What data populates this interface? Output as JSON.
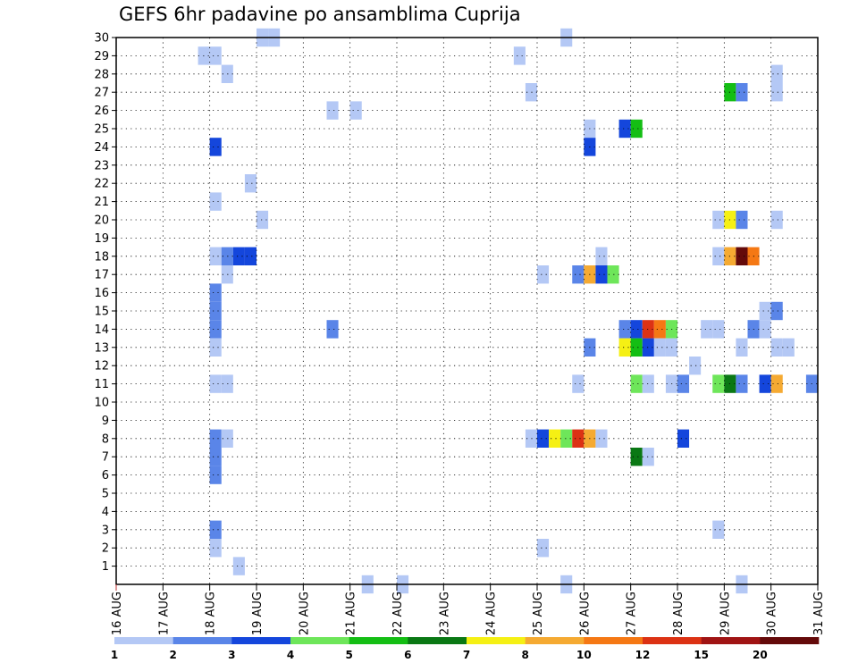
{
  "chart_data": {
    "type": "heatmap",
    "title": "GEFS 6hr padavine po ansamblima Cuprija",
    "xlabel": "",
    "ylabel": "",
    "x_range": [
      0,
      60
    ],
    "y_range": [
      0,
      30
    ],
    "x_ticks": [
      {
        "x": 0,
        "label": "16 AUG"
      },
      {
        "x": 4,
        "label": "17 AUG"
      },
      {
        "x": 8,
        "label": "18 AUG"
      },
      {
        "x": 12,
        "label": "19 AUG"
      },
      {
        "x": 16,
        "label": "20 AUG"
      },
      {
        "x": 20,
        "label": "21 AUG"
      },
      {
        "x": 24,
        "label": "22 AUG"
      },
      {
        "x": 28,
        "label": "23 AUG"
      },
      {
        "x": 32,
        "label": "24 AUG"
      },
      {
        "x": 36,
        "label": "25 AUG"
      },
      {
        "x": 40,
        "label": "26 AUG"
      },
      {
        "x": 44,
        "label": "27 AUG"
      },
      {
        "x": 48,
        "label": "28 AUG"
      },
      {
        "x": 52,
        "label": "29 AUG"
      },
      {
        "x": 56,
        "label": "30 AUG"
      },
      {
        "x": 60,
        "label": "31 AUG"
      }
    ],
    "y_ticks": [
      "1",
      "2",
      "3",
      "4",
      "5",
      "6",
      "7",
      "8",
      "9",
      "10",
      "11",
      "12",
      "13",
      "14",
      "15",
      "16",
      "17",
      "18",
      "19",
      "20",
      "21",
      "22",
      "23",
      "24",
      "25",
      "26",
      "27",
      "28",
      "29",
      "30"
    ],
    "grid": true,
    "colorbar": {
      "labels": [
        "1",
        "2",
        "3",
        "4",
        "5",
        "6",
        "7",
        "8",
        "10",
        "12",
        "15",
        "20"
      ],
      "colors": [
        "#b4c8f5",
        "#5a85e8",
        "#1446dc",
        "#6ee65a",
        "#14be14",
        "#0a7814",
        "#f5f014",
        "#f5aa32",
        "#f57814",
        "#dc3214",
        "#a01414",
        "#640a0a"
      ]
    },
    "cells": [
      {
        "x": 12,
        "y": 30,
        "c": 0
      },
      {
        "x": 13,
        "y": 30,
        "c": 0
      },
      {
        "x": 38,
        "y": 30,
        "c": 0
      },
      {
        "x": 7,
        "y": 29,
        "c": 0
      },
      {
        "x": 8,
        "y": 29,
        "c": 0
      },
      {
        "x": 34,
        "y": 29,
        "c": 0
      },
      {
        "x": 9,
        "y": 28,
        "c": 0
      },
      {
        "x": 56,
        "y": 28,
        "c": 0
      },
      {
        "x": 35,
        "y": 27,
        "c": 0
      },
      {
        "x": 52,
        "y": 27,
        "c": 4
      },
      {
        "x": 53,
        "y": 27,
        "c": 1
      },
      {
        "x": 56,
        "y": 27,
        "c": 0
      },
      {
        "x": 18,
        "y": 26,
        "c": 0
      },
      {
        "x": 20,
        "y": 26,
        "c": 0
      },
      {
        "x": 40,
        "y": 25,
        "c": 0
      },
      {
        "x": 43,
        "y": 25,
        "c": 2
      },
      {
        "x": 44,
        "y": 25,
        "c": 4
      },
      {
        "x": 8,
        "y": 24,
        "c": 2
      },
      {
        "x": 40,
        "y": 24,
        "c": 2
      },
      {
        "x": 11,
        "y": 22,
        "c": 0
      },
      {
        "x": 8,
        "y": 21,
        "c": 0
      },
      {
        "x": 12,
        "y": 20,
        "c": 0
      },
      {
        "x": 51,
        "y": 20,
        "c": 0
      },
      {
        "x": 52,
        "y": 20,
        "c": 6
      },
      {
        "x": 53,
        "y": 20,
        "c": 1
      },
      {
        "x": 56,
        "y": 20,
        "c": 0
      },
      {
        "x": 8,
        "y": 18,
        "c": 0
      },
      {
        "x": 9,
        "y": 18,
        "c": 1
      },
      {
        "x": 10,
        "y": 18,
        "c": 2
      },
      {
        "x": 11,
        "y": 18,
        "c": 2
      },
      {
        "x": 41,
        "y": 18,
        "c": 0
      },
      {
        "x": 51,
        "y": 18,
        "c": 0
      },
      {
        "x": 52,
        "y": 18,
        "c": 7
      },
      {
        "x": 53,
        "y": 18,
        "c": 11
      },
      {
        "x": 54,
        "y": 18,
        "c": 8
      },
      {
        "x": 9,
        "y": 17,
        "c": 0
      },
      {
        "x": 36,
        "y": 17,
        "c": 0
      },
      {
        "x": 39,
        "y": 17,
        "c": 1
      },
      {
        "x": 40,
        "y": 17,
        "c": 7
      },
      {
        "x": 41,
        "y": 17,
        "c": 2
      },
      {
        "x": 42,
        "y": 17,
        "c": 3
      },
      {
        "x": 8,
        "y": 16,
        "c": 1
      },
      {
        "x": 8,
        "y": 15,
        "c": 1
      },
      {
        "x": 55,
        "y": 15,
        "c": 0
      },
      {
        "x": 56,
        "y": 15,
        "c": 1
      },
      {
        "x": 8,
        "y": 14,
        "c": 1
      },
      {
        "x": 18,
        "y": 14,
        "c": 1
      },
      {
        "x": 43,
        "y": 14,
        "c": 1
      },
      {
        "x": 44,
        "y": 14,
        "c": 2
      },
      {
        "x": 45,
        "y": 14,
        "c": 9
      },
      {
        "x": 46,
        "y": 14,
        "c": 8
      },
      {
        "x": 47,
        "y": 14,
        "c": 3
      },
      {
        "x": 50,
        "y": 14,
        "c": 0
      },
      {
        "x": 51,
        "y": 14,
        "c": 0
      },
      {
        "x": 54,
        "y": 14,
        "c": 1
      },
      {
        "x": 55,
        "y": 14,
        "c": 0
      },
      {
        "x": 8,
        "y": 13,
        "c": 0
      },
      {
        "x": 40,
        "y": 13,
        "c": 1
      },
      {
        "x": 43,
        "y": 13,
        "c": 6
      },
      {
        "x": 44,
        "y": 13,
        "c": 4
      },
      {
        "x": 45,
        "y": 13,
        "c": 2
      },
      {
        "x": 46,
        "y": 13,
        "c": 0
      },
      {
        "x": 47,
        "y": 13,
        "c": 0
      },
      {
        "x": 53,
        "y": 13,
        "c": 0
      },
      {
        "x": 56,
        "y": 13,
        "c": 0
      },
      {
        "x": 57,
        "y": 13,
        "c": 0
      },
      {
        "x": 49,
        "y": 12,
        "c": 0
      },
      {
        "x": 8,
        "y": 11,
        "c": 0
      },
      {
        "x": 9,
        "y": 11,
        "c": 0
      },
      {
        "x": 39,
        "y": 11,
        "c": 0
      },
      {
        "x": 44,
        "y": 11,
        "c": 3
      },
      {
        "x": 45,
        "y": 11,
        "c": 0
      },
      {
        "x": 47,
        "y": 11,
        "c": 0
      },
      {
        "x": 48,
        "y": 11,
        "c": 1
      },
      {
        "x": 51,
        "y": 11,
        "c": 3
      },
      {
        "x": 52,
        "y": 11,
        "c": 5
      },
      {
        "x": 53,
        "y": 11,
        "c": 1
      },
      {
        "x": 55,
        "y": 11,
        "c": 2
      },
      {
        "x": 56,
        "y": 11,
        "c": 7
      },
      {
        "x": 59,
        "y": 11,
        "c": 1
      },
      {
        "x": 8,
        "y": 8,
        "c": 1
      },
      {
        "x": 9,
        "y": 8,
        "c": 0
      },
      {
        "x": 35,
        "y": 8,
        "c": 0
      },
      {
        "x": 36,
        "y": 8,
        "c": 2
      },
      {
        "x": 37,
        "y": 8,
        "c": 6
      },
      {
        "x": 38,
        "y": 8,
        "c": 3
      },
      {
        "x": 39,
        "y": 8,
        "c": 9
      },
      {
        "x": 40,
        "y": 8,
        "c": 7
      },
      {
        "x": 41,
        "y": 8,
        "c": 0
      },
      {
        "x": 48,
        "y": 8,
        "c": 2
      },
      {
        "x": 8,
        "y": 7,
        "c": 1
      },
      {
        "x": 8,
        "y": 6,
        "c": 1
      },
      {
        "x": 44,
        "y": 7,
        "c": 5
      },
      {
        "x": 45,
        "y": 7,
        "c": 0
      },
      {
        "x": 8,
        "y": 3,
        "c": 1
      },
      {
        "x": 51,
        "y": 3,
        "c": 0
      },
      {
        "x": 8,
        "y": 2,
        "c": 0
      },
      {
        "x": 36,
        "y": 2,
        "c": 0
      },
      {
        "x": 10,
        "y": 1,
        "c": 0
      },
      {
        "x": 21,
        "y": 0,
        "c": 0
      },
      {
        "x": 24,
        "y": 0,
        "c": 0
      },
      {
        "x": 38,
        "y": 0,
        "c": 0
      },
      {
        "x": 53,
        "y": 0,
        "c": 0
      }
    ]
  }
}
